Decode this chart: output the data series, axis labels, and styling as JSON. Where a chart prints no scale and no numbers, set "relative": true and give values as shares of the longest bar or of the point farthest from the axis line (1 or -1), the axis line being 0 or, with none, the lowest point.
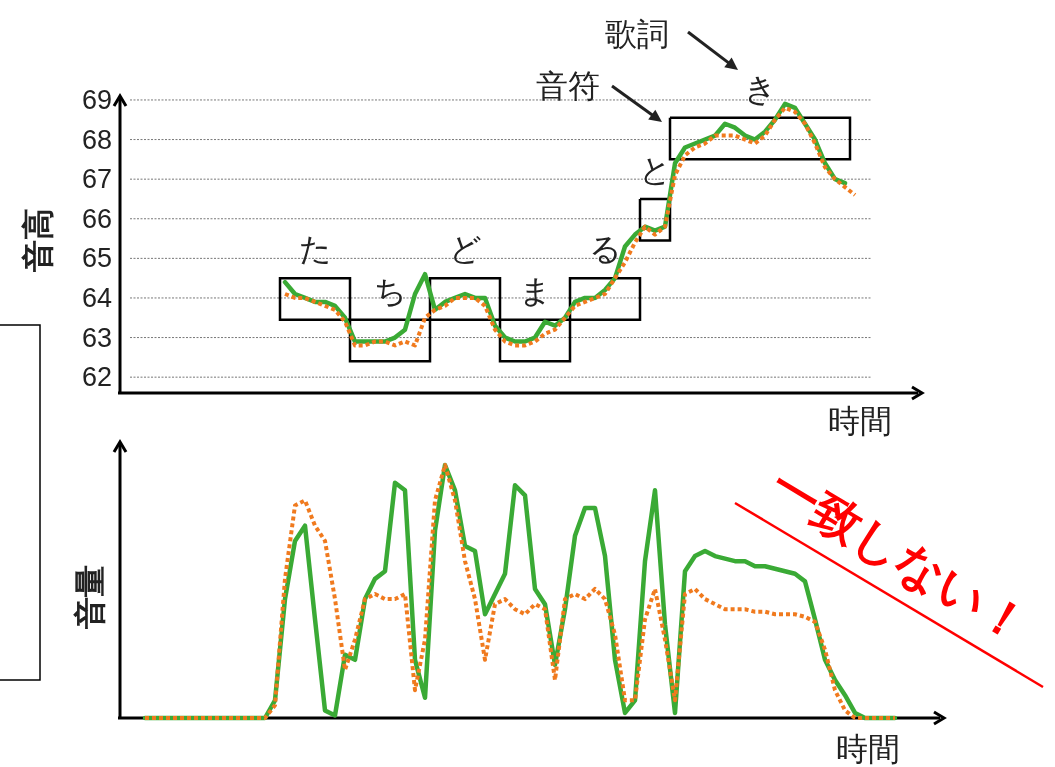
{
  "chart_data": [
    {
      "type": "line",
      "ylabel": "音高",
      "xlabel": "時間",
      "ylim": [
        61.6,
        69.1
      ],
      "yticks": [
        62,
        63,
        64,
        65,
        66,
        67,
        68,
        69
      ],
      "grid": "y",
      "tick_labels": "y",
      "categories": [
        null,
        null,
        null,
        null,
        null,
        null,
        null,
        null,
        null,
        null,
        null,
        null,
        null,
        null,
        null,
        null,
        null,
        null,
        null,
        null,
        null,
        null,
        null,
        null,
        null,
        null,
        null,
        null,
        null,
        null,
        null,
        null,
        null,
        null,
        null,
        null,
        null,
        null,
        null,
        null,
        null,
        null,
        null,
        null,
        null,
        null,
        null,
        null,
        null,
        null,
        null,
        null,
        null,
        null,
        null,
        null,
        null,
        null,
        null,
        null,
        null,
        null,
        null,
        null,
        null,
        null,
        null,
        null,
        null,
        null,
        null,
        null,
        null,
        null,
        null,
        null,
        null,
        null,
        null,
        null
      ],
      "series": [
        {
          "type": "bar",
          "color": "#000000",
          "base": [
            null,
            null,
            null,
            null,
            null,
            null,
            null,
            null,
            null,
            null,
            null,
            null,
            null,
            null,
            null,
            null,
            63.45,
            63.45,
            63.45,
            63.45,
            63.45,
            63.45,
            63.45,
            62.4,
            62.4,
            62.4,
            62.4,
            62.4,
            62.4,
            62.4,
            62.4,
            63.45,
            63.45,
            63.45,
            63.45,
            63.45,
            63.45,
            63.45,
            62.4,
            62.4,
            62.4,
            62.4,
            62.4,
            62.4,
            62.4,
            63.45,
            63.45,
            63.45,
            63.45,
            63.45,
            63.45,
            63.45,
            65.45,
            65.45,
            65.45,
            67.5,
            67.5,
            67.5,
            67.5,
            67.5,
            67.5,
            67.5,
            67.5,
            67.5,
            67.5,
            67.5,
            67.5,
            67.5,
            67.5,
            67.5,
            67.5,
            67.5,
            67.5,
            null,
            null,
            null,
            null,
            null,
            null,
            null
          ],
          "values": [
            null,
            null,
            null,
            null,
            null,
            null,
            null,
            null,
            null,
            null,
            null,
            null,
            null,
            null,
            null,
            null,
            1.05,
            1.05,
            1.05,
            1.05,
            1.05,
            1.05,
            1.05,
            1.05,
            1.05,
            1.05,
            1.05,
            1.05,
            1.05,
            1.05,
            1.05,
            1.05,
            1.05,
            1.05,
            1.05,
            1.05,
            1.05,
            1.05,
            1.05,
            1.05,
            1.05,
            1.05,
            1.05,
            1.05,
            1.05,
            1.05,
            1.05,
            1.05,
            1.05,
            1.05,
            1.05,
            1.05,
            1.05,
            1.05,
            1.05,
            1.05,
            1.05,
            1.05,
            1.05,
            1.05,
            1.05,
            1.05,
            1.05,
            1.05,
            1.05,
            1.05,
            1.05,
            1.05,
            1.05,
            1.05,
            1.05,
            1.05,
            1.05,
            null,
            null,
            null,
            null,
            null,
            null,
            null
          ]
        },
        {
          "color": "#3aaa35",
          "line_style": "solid",
          "values": [
            null,
            null,
            null,
            null,
            null,
            null,
            null,
            null,
            null,
            null,
            null,
            null,
            null,
            null,
            null,
            null,
            64.4,
            64.1,
            64.0,
            63.9,
            63.9,
            63.8,
            63.5,
            62.9,
            62.9,
            62.9,
            62.9,
            63.0,
            63.2,
            64.1,
            64.6,
            63.7,
            63.9,
            64.0,
            64.1,
            64.0,
            64.0,
            63.3,
            63.0,
            62.9,
            62.9,
            63.0,
            63.4,
            63.3,
            63.5,
            63.9,
            64.0,
            64.0,
            64.2,
            64.5,
            65.3,
            65.6,
            65.8,
            65.7,
            65.8,
            67.4,
            67.8,
            67.9,
            68.0,
            68.1,
            68.4,
            68.3,
            68.1,
            68.0,
            68.2,
            68.5,
            68.9,
            68.8,
            68.4,
            68.0,
            67.4,
            67.0,
            66.9,
            null,
            null,
            null,
            null,
            null,
            null,
            null
          ]
        },
        {
          "color": "#f07a1e",
          "line_style": "dotted",
          "values": [
            null,
            null,
            null,
            null,
            null,
            null,
            null,
            null,
            null,
            null,
            null,
            null,
            null,
            null,
            null,
            null,
            64.1,
            64.0,
            64.0,
            63.9,
            63.8,
            63.7,
            63.4,
            62.8,
            62.8,
            62.9,
            62.9,
            62.8,
            62.9,
            62.8,
            63.5,
            63.7,
            63.8,
            64.0,
            64.0,
            64.0,
            63.8,
            63.2,
            62.9,
            62.8,
            62.8,
            62.9,
            63.1,
            63.2,
            63.5,
            63.8,
            63.9,
            64.0,
            64.1,
            64.5,
            64.9,
            65.4,
            65.8,
            65.6,
            65.8,
            67.1,
            67.6,
            67.8,
            67.9,
            68.1,
            68.1,
            68.1,
            68.0,
            67.9,
            68.1,
            68.5,
            68.8,
            68.7,
            68.4,
            67.9,
            67.3,
            67.0,
            66.8,
            66.6,
            null,
            null,
            null,
            null,
            null,
            null
          ]
        }
      ],
      "annotations": [
        "た",
        "ち",
        "ど",
        "ま",
        "る",
        "と",
        "き",
        "音符",
        "歌詞"
      ]
    },
    {
      "type": "line",
      "ylabel": "音量",
      "xlabel": "時間",
      "relative": true,
      "tick_labels": false,
      "categories": [
        null,
        null,
        null,
        null,
        null,
        null,
        null,
        null,
        null,
        null,
        null,
        null,
        null,
        null,
        null,
        null,
        null,
        null,
        null,
        null,
        null,
        null,
        null,
        null,
        null,
        null,
        null,
        null,
        null,
        null,
        null,
        null,
        null,
        null,
        null,
        null,
        null,
        null,
        null,
        null,
        null,
        null,
        null,
        null,
        null,
        null,
        null,
        null,
        null,
        null,
        null,
        null,
        null,
        null,
        null,
        null,
        null,
        null,
        null,
        null,
        null,
        null,
        null,
        null,
        null,
        null,
        null,
        null,
        null,
        null,
        null,
        null,
        null,
        null,
        null,
        null,
        null,
        null,
        null,
        null,
        null,
        null
      ],
      "series": [
        {
          "color": "#3aaa35",
          "line_style": "solid",
          "values": [
            null,
            null,
            0,
            0,
            0,
            0,
            0,
            0,
            0,
            0,
            0,
            0,
            0,
            0,
            0,
            0.07,
            0.47,
            0.7,
            0.76,
            0.39,
            0.03,
            0.01,
            0.25,
            0.23,
            0.47,
            0.55,
            0.58,
            0.93,
            0.9,
            0.23,
            0.08,
            0.74,
            1.0,
            0.9,
            0.68,
            0.66,
            0.41,
            0.49,
            0.57,
            0.92,
            0.88,
            0.51,
            0.45,
            0.21,
            0.43,
            0.72,
            0.83,
            0.83,
            0.64,
            0.23,
            0.02,
            0.07,
            0.62,
            0.9,
            0.37,
            0.02,
            0.58,
            0.64,
            0.66,
            0.64,
            0.63,
            0.62,
            0.62,
            0.6,
            0.6,
            0.59,
            0.58,
            0.57,
            0.54,
            0.39,
            0.23,
            0.15,
            0.09,
            0.02,
            0,
            0,
            0,
            0,
            null,
            null,
            null,
            null
          ]
        },
        {
          "color": "#f07a1e",
          "line_style": "dotted",
          "values": [
            null,
            null,
            0,
            0,
            0,
            0,
            0,
            0,
            0,
            0,
            0,
            0,
            0,
            0,
            0,
            0.05,
            0.55,
            0.84,
            0.86,
            0.76,
            0.7,
            0.47,
            0.19,
            0.31,
            0.47,
            0.49,
            0.47,
            0.47,
            0.49,
            0.11,
            0.31,
            0.86,
            1.0,
            0.86,
            0.62,
            0.47,
            0.23,
            0.45,
            0.47,
            0.43,
            0.41,
            0.45,
            0.43,
            0.15,
            0.47,
            0.49,
            0.47,
            0.51,
            0.47,
            0.33,
            0.07,
            0.07,
            0.39,
            0.51,
            0.31,
            0.07,
            0.49,
            0.51,
            0.47,
            0.45,
            0.43,
            0.43,
            0.43,
            0.42,
            0.42,
            0.41,
            0.41,
            0.41,
            0.4,
            0.38,
            0.27,
            0.11,
            0.03,
            0,
            0,
            0,
            0,
            0,
            null,
            null,
            null,
            null
          ]
        }
      ],
      "annotations": [
        "一致しない！"
      ]
    }
  ]
}
